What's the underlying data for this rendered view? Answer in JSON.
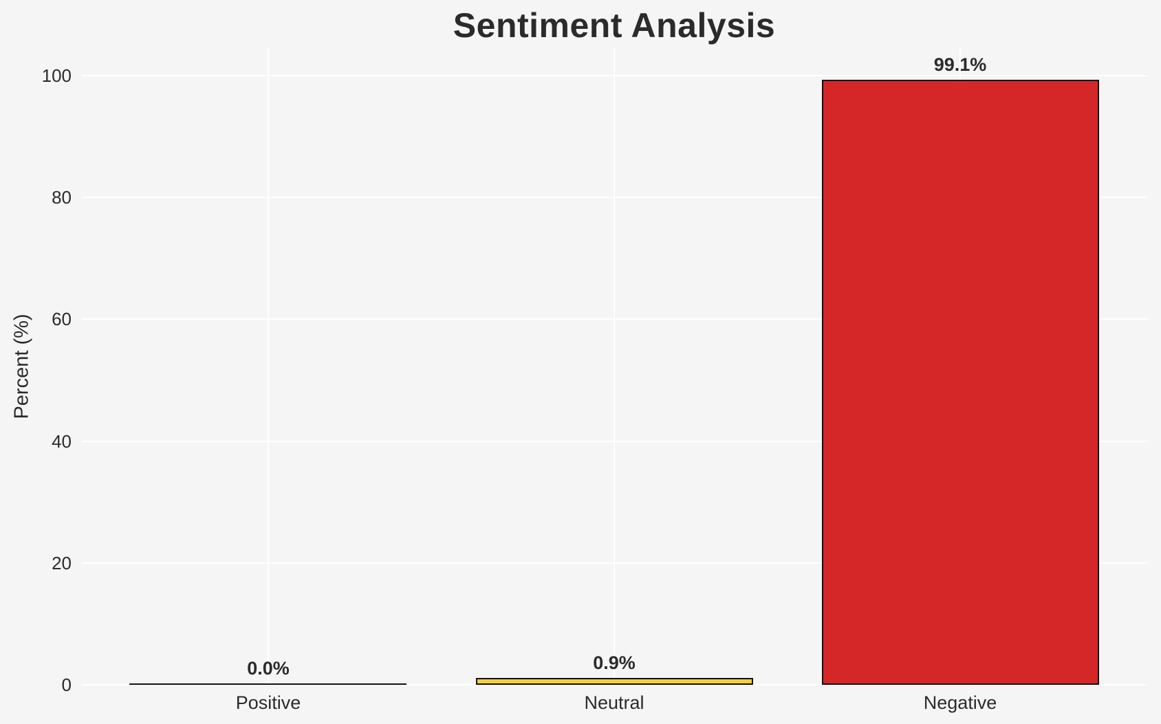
{
  "chart_data": {
    "type": "bar",
    "title": "Sentiment Analysis",
    "ylabel": "Percent (%)",
    "xlabel": "",
    "categories": [
      "Positive",
      "Neutral",
      "Negative"
    ],
    "values": [
      0.0,
      0.9,
      99.1
    ],
    "value_labels": [
      "0.0%",
      "0.9%",
      "99.1%"
    ],
    "bar_colors": [
      null,
      "#f2cf3c",
      "#d62728"
    ],
    "bar_edge_color": "#111111",
    "yticks": [
      "0",
      "20",
      "40",
      "60",
      "80",
      "100"
    ],
    "ytick_values": [
      0,
      20,
      40,
      60,
      80,
      100
    ],
    "ylim": [
      0,
      104.5
    ],
    "grid": "both",
    "grid_color": "#ffffff",
    "background_color": "#f5f5f5",
    "text_color": "#2b2b2b",
    "legend_position": "none"
  }
}
